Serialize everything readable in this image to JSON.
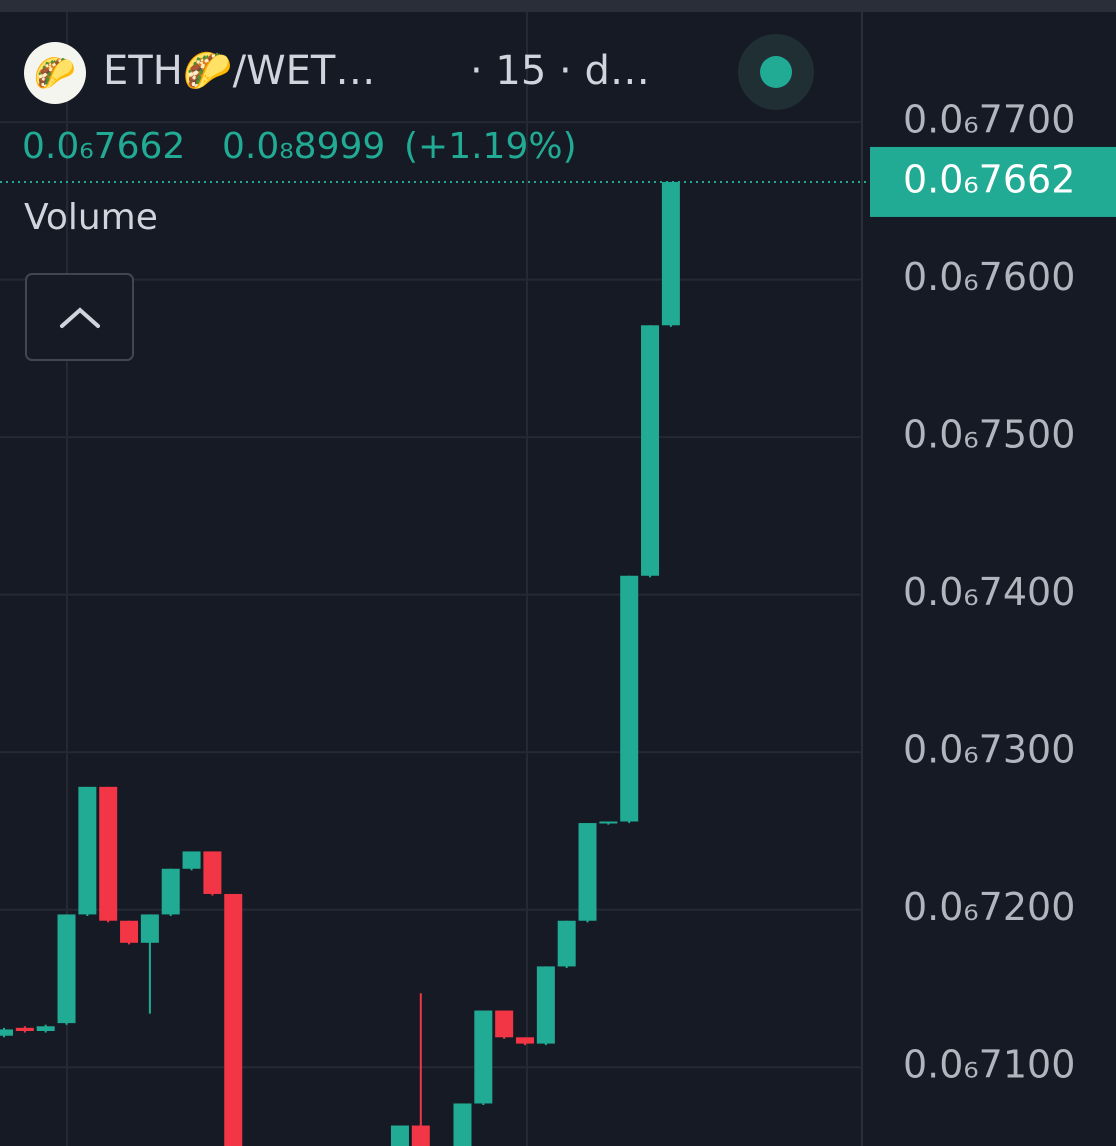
{
  "chart_data": {
    "type": "candlestick",
    "title": "ETH🌮/WET…",
    "subtitle": "· 15 · d…",
    "indicator": "Volume",
    "legend": {
      "close": {
        "value": 7.662e-07,
        "label": "0.0₆7662"
      },
      "change": {
        "value": 8.999e-09,
        "label": "0.0₈8999"
      },
      "change_pct": {
        "value": 1.19,
        "label": "(+1.19%)"
      }
    },
    "last_price": {
      "value": 7.662e-07,
      "label": "0.0₆7662"
    },
    "open": [
      7.12e-07,
      7.125e-07,
      7.123e-07,
      7.128e-07,
      7.197e-07,
      7.278e-07,
      7.193e-07,
      7.179e-07,
      7.197e-07,
      7.226e-07,
      7.237e-07,
      7.21e-07,
      null,
      null,
      null,
      null,
      null,
      null,
      null,
      7.04e-07,
      7.063e-07,
      null,
      7.04e-07,
      7.077e-07,
      7.136e-07,
      7.119e-07,
      7.115e-07,
      7.164e-07,
      7.193e-07,
      7.255e-07,
      7.256e-07,
      7.412e-07,
      7.571e-07
    ],
    "high": [
      7.125e-07,
      7.126e-07,
      7.127e-07,
      7.197e-07,
      7.278e-07,
      7.278e-07,
      7.193e-07,
      7.197e-07,
      7.226e-07,
      7.237e-07,
      7.237e-07,
      7.21e-07,
      null,
      null,
      null,
      null,
      null,
      null,
      null,
      7.063e-07,
      7.147e-07,
      null,
      7.077e-07,
      7.136e-07,
      7.136e-07,
      7.119e-07,
      7.164e-07,
      7.193e-07,
      7.255e-07,
      7.256e-07,
      7.412e-07,
      7.571e-07,
      7.662e-07
    ],
    "low": [
      7.119e-07,
      7.122e-07,
      7.122e-07,
      7.127e-07,
      7.196e-07,
      7.192e-07,
      7.178e-07,
      7.134e-07,
      7.196e-07,
      7.225e-07,
      7.209e-07,
      7.03e-07,
      null,
      null,
      null,
      null,
      null,
      null,
      null,
      7.03e-07,
      7.03e-07,
      null,
      7.03e-07,
      7.076e-07,
      7.118e-07,
      7.114e-07,
      7.114e-07,
      7.163e-07,
      7.192e-07,
      7.254e-07,
      7.255e-07,
      7.411e-07,
      7.57e-07
    ],
    "close": [
      7.124e-07,
      7.123e-07,
      7.126e-07,
      7.197e-07,
      7.278e-07,
      7.193e-07,
      7.179e-07,
      7.197e-07,
      7.226e-07,
      7.237e-07,
      7.21e-07,
      7.04e-07,
      null,
      null,
      null,
      null,
      null,
      null,
      null,
      7.063e-07,
      7.04e-07,
      null,
      7.077e-07,
      7.136e-07,
      7.119e-07,
      7.115e-07,
      7.164e-07,
      7.193e-07,
      7.255e-07,
      7.256e-07,
      7.412e-07,
      7.571e-07,
      7.662e-07
    ],
    "up_color": "#22ab94",
    "down_color": "#f23645",
    "ylim": [
      7.05e-07,
      7.7775e-07
    ],
    "yticks": [
      {
        "value": 7.1e-07,
        "label": "0.0₆7100"
      },
      {
        "value": 7.2e-07,
        "label": "0.0₆7200"
      },
      {
        "value": 7.3e-07,
        "label": "0.0₆7300"
      },
      {
        "value": 7.4e-07,
        "label": "0.0₆7400"
      },
      {
        "value": 7.5e-07,
        "label": "0.0₆7500"
      },
      {
        "value": 7.6e-07,
        "label": "0.0₆7600"
      },
      {
        "value": 7.7e-07,
        "label": "0.0₆7700"
      }
    ],
    "grid": true
  }
}
